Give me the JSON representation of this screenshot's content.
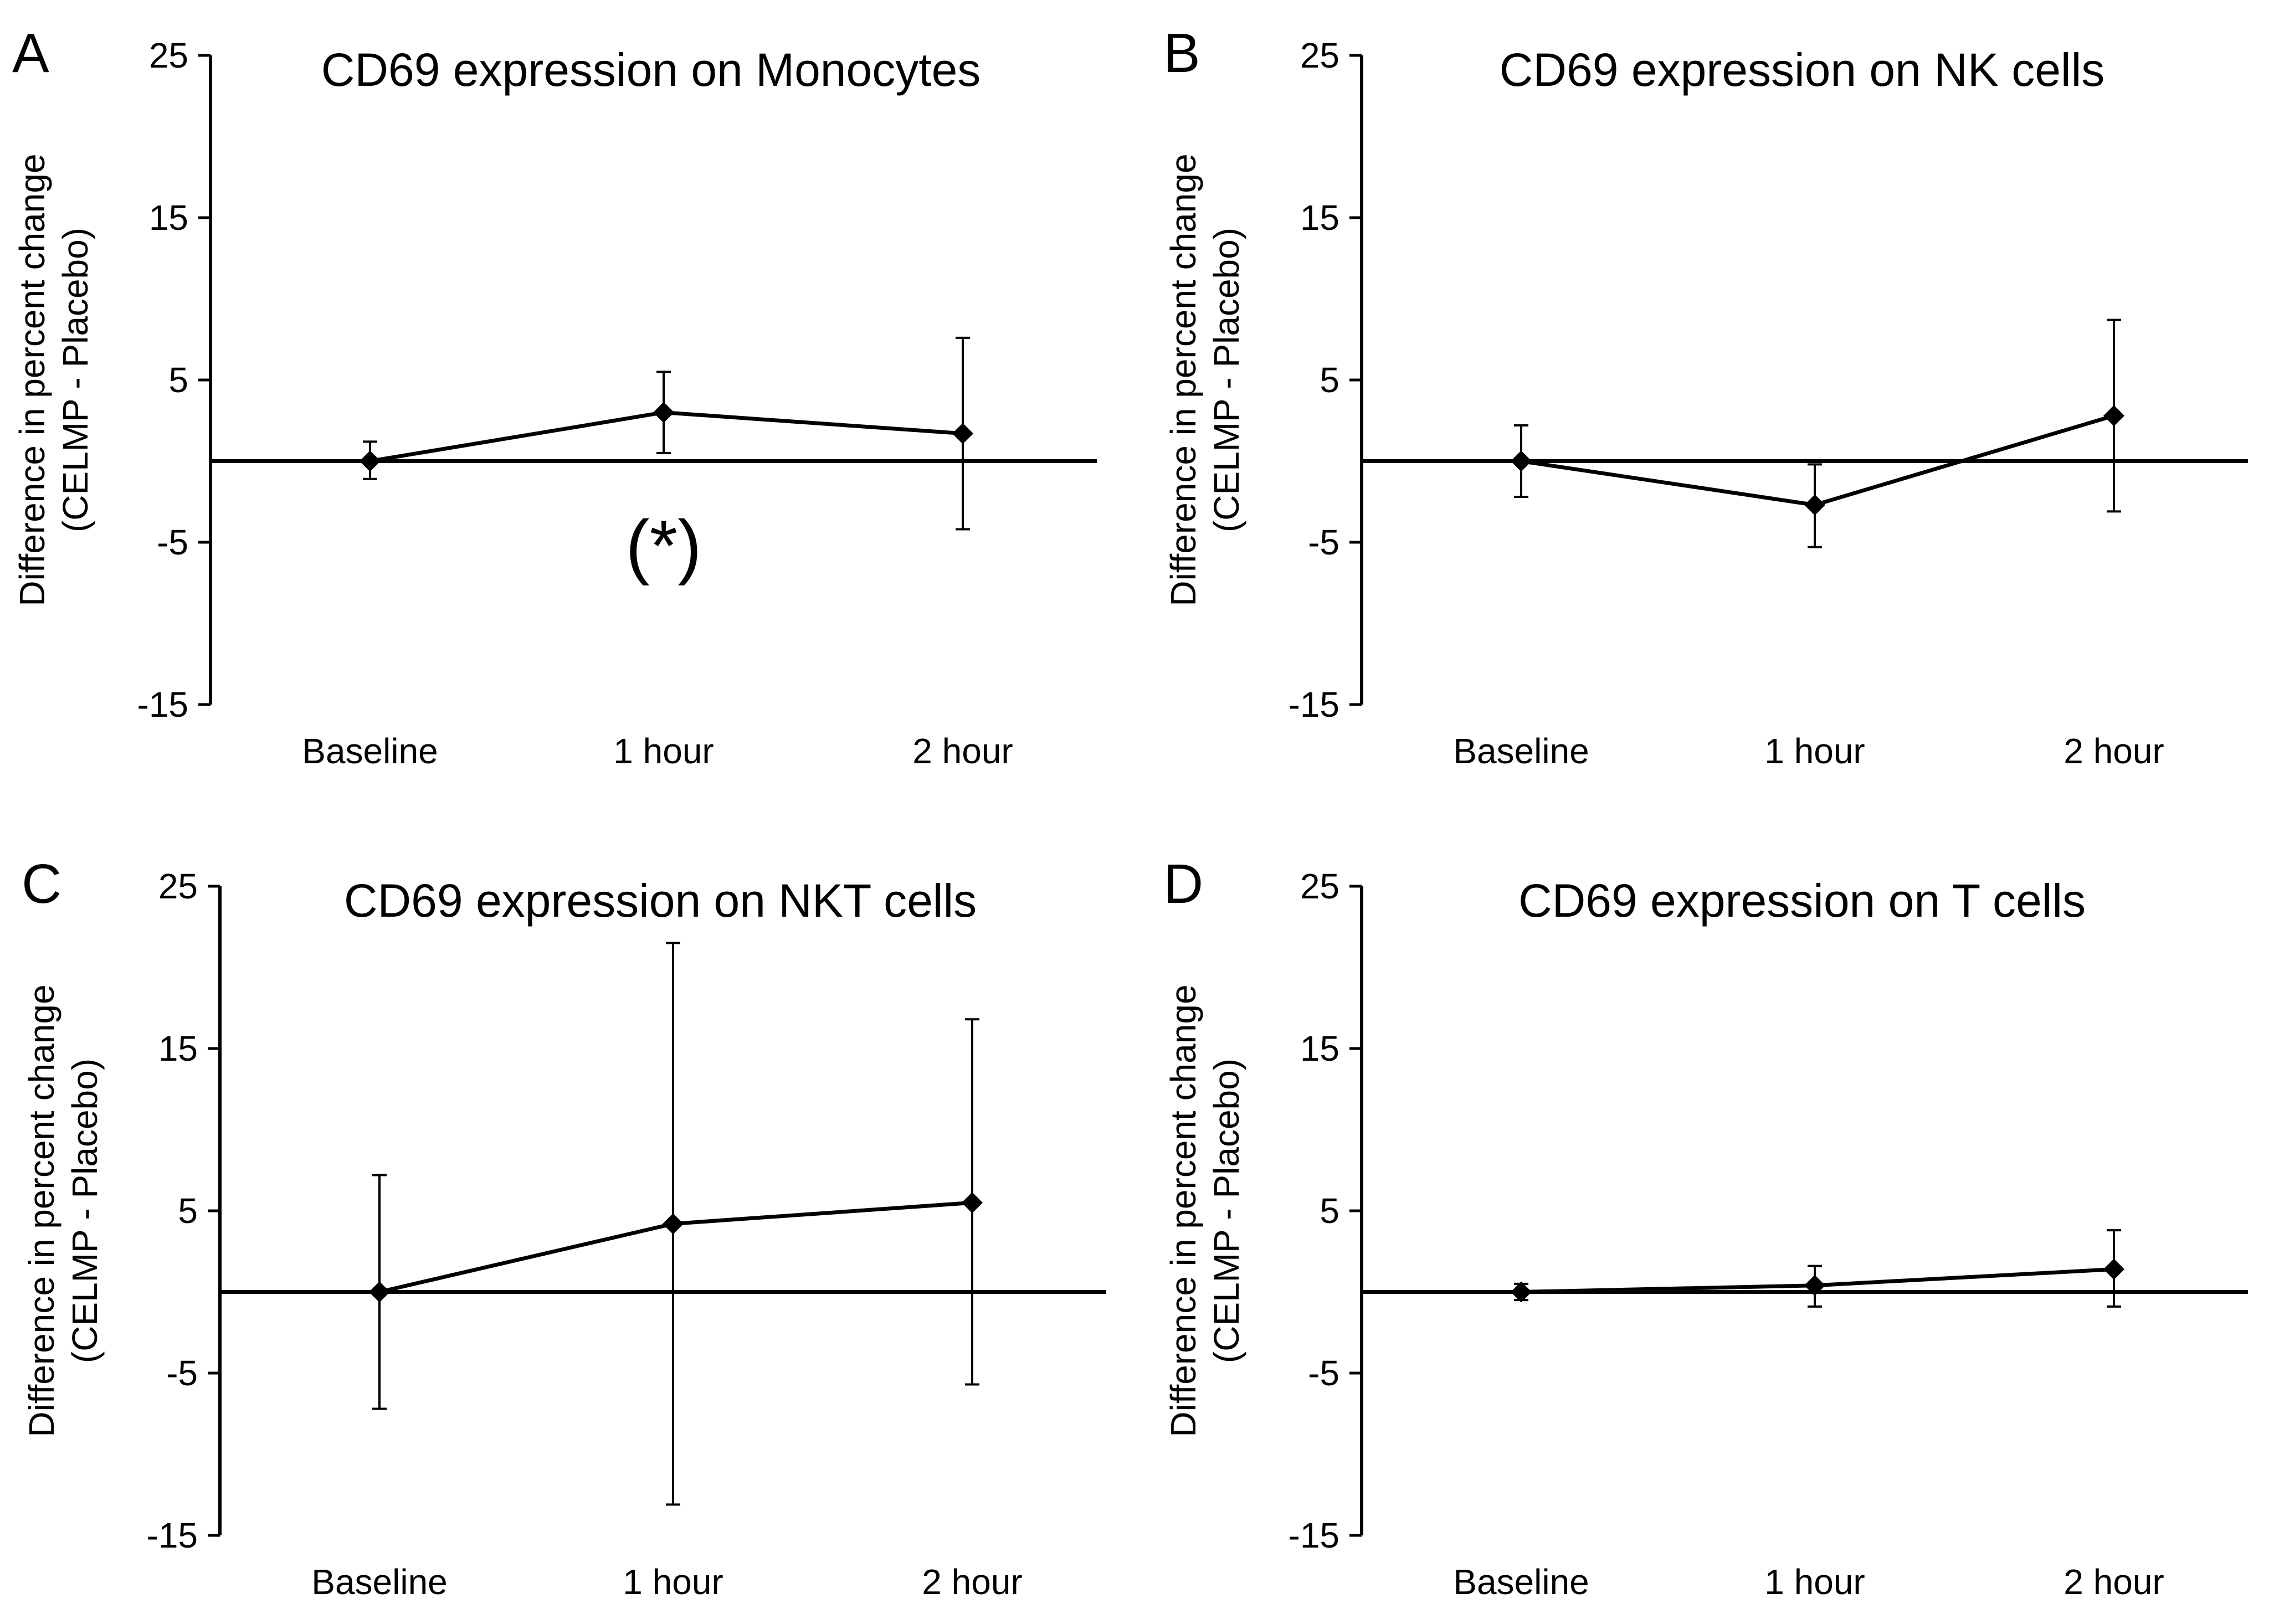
{
  "figure": {
    "panels": [
      {
        "letter": "A"
      },
      {
        "letter": "B"
      },
      {
        "letter": "C"
      },
      {
        "letter": "D"
      }
    ]
  },
  "chart_data": [
    {
      "type": "line",
      "panel": "A",
      "title": "CD69 expression on Monocytes",
      "ylabel_line1": "Difference in percent change",
      "ylabel_line2": "(CELMP - Placebo)",
      "xlabel": "",
      "categories": [
        "Baseline",
        "1 hour",
        "2 hour"
      ],
      "values": [
        0,
        3,
        1.7
      ],
      "err_upper": [
        1.2,
        5.5,
        7.6
      ],
      "err_lower": [
        -1.1,
        0.5,
        -4.2
      ],
      "ylim": [
        -15,
        25
      ],
      "yticks": [
        "25",
        "15",
        "5",
        "-5",
        "-15"
      ],
      "reference_line": 0,
      "annotation": {
        "text": "(*)",
        "category": "1 hour"
      }
    },
    {
      "type": "line",
      "panel": "B",
      "title": "CD69 expression on NK cells",
      "ylabel_line1": "Difference in percent change",
      "ylabel_line2": "(CELMP - Placebo)",
      "xlabel": "",
      "categories": [
        "Baseline",
        "1 hour",
        "2 hour"
      ],
      "values": [
        0,
        -2.7,
        2.8
      ],
      "err_upper": [
        2.2,
        -0.2,
        8.7
      ],
      "err_lower": [
        -2.2,
        -5.3,
        -3.1
      ],
      "ylim": [
        -15,
        25
      ],
      "yticks": [
        "25",
        "15",
        "5",
        "-5",
        "-15"
      ],
      "reference_line": 0
    },
    {
      "type": "line",
      "panel": "C",
      "title": "CD69 expression on NKT cells",
      "ylabel_line1": "Difference in percent change",
      "ylabel_line2": "(CELMP - Placebo)",
      "xlabel": "",
      "categories": [
        "Baseline",
        "1 hour",
        "2 hour"
      ],
      "values": [
        0,
        4.2,
        5.5
      ],
      "err_upper": [
        7.2,
        21.5,
        16.8
      ],
      "err_lower": [
        -7.2,
        -13.1,
        -5.7
      ],
      "ylim": [
        -15,
        25
      ],
      "yticks": [
        "25",
        "15",
        "5",
        "-5",
        "-15"
      ],
      "reference_line": 0
    },
    {
      "type": "line",
      "panel": "D",
      "title": "CD69 expression on T cells",
      "ylabel_line1": "Difference in percent change",
      "ylabel_line2": "(CELMP - Placebo)",
      "xlabel": "",
      "categories": [
        "Baseline",
        "1 hour",
        "2 hour"
      ],
      "values": [
        0,
        0.4,
        1.4
      ],
      "err_upper": [
        0.5,
        1.6,
        3.8
      ],
      "err_lower": [
        -0.5,
        -0.9,
        -0.9
      ],
      "ylim": [
        -15,
        25
      ],
      "yticks": [
        "25",
        "15",
        "5",
        "-5",
        "-15"
      ],
      "reference_line": 0
    }
  ]
}
